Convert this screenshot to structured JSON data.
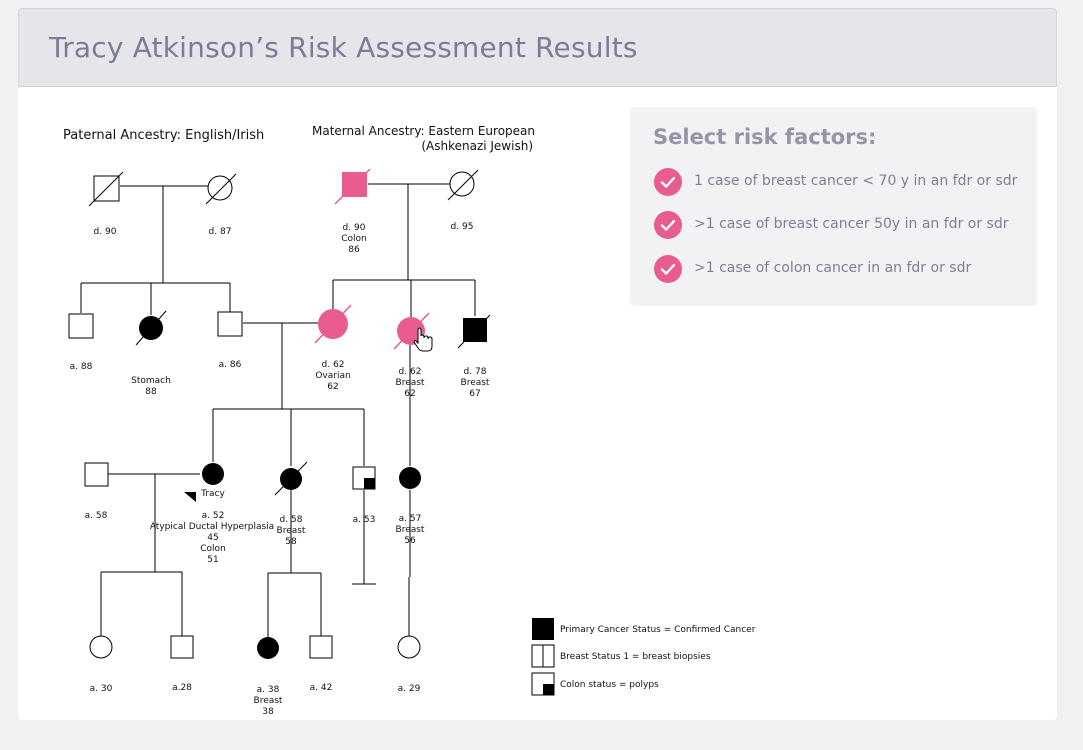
{
  "header": {
    "title": "Tracy Atkinson’s Risk Assessment Results"
  },
  "ancestry": {
    "paternal": "Paternal Ancestry: English/Irish",
    "maternal_line1": "Maternal Ancestry: Eastern European",
    "maternal_line2": "(Ashkenazi Jewish)"
  },
  "colors": {
    "affected": "#e85c8f",
    "confirmed": "#000000",
    "accent": "#e85c8f"
  },
  "pedigree": {
    "pgf": {
      "lines": [
        "d. 90"
      ]
    },
    "pgm": {
      "lines": [
        "d. 87"
      ]
    },
    "mgf": {
      "lines": [
        "d. 90",
        "Colon",
        "86"
      ]
    },
    "mgm": {
      "lines": [
        "d. 95"
      ]
    },
    "uncle1": {
      "lines": [
        "a. 88"
      ]
    },
    "aunt1": {
      "lines": [
        "Stomach",
        "88"
      ]
    },
    "father": {
      "lines": [
        "a. 86"
      ]
    },
    "mother": {
      "lines": [
        "d. 62",
        "Ovarian",
        "62"
      ]
    },
    "aunt2": {
      "lines": [
        "d. 62",
        "Breast",
        "62"
      ]
    },
    "uncle2": {
      "lines": [
        "d. 78",
        "Breast",
        "67"
      ]
    },
    "husband": {
      "lines": [
        "a. 58"
      ]
    },
    "tracy": {
      "name": "Tracy",
      "lines": [
        "a. 52",
        "Atypical Ductal Hyperplasia",
        "45",
        "Colon",
        "51"
      ]
    },
    "sister": {
      "lines": [
        "d. 58",
        "Breast",
        "58"
      ]
    },
    "brother": {
      "lines": [
        "a. 53"
      ]
    },
    "cousin": {
      "lines": [
        "a. 57",
        "Breast",
        "56"
      ]
    },
    "daughter1": {
      "lines": [
        "a. 30"
      ]
    },
    "son1": {
      "lines": [
        "a.28"
      ]
    },
    "niece": {
      "lines": [
        "a. 38",
        "Breast",
        "38"
      ]
    },
    "nephew": {
      "lines": [
        "a. 42"
      ]
    },
    "cousin_child": {
      "lines": [
        "a. 29"
      ]
    }
  },
  "legend": [
    {
      "icon": "filled-square-icon",
      "label": "Primary Cancer Status = Confirmed Cancer"
    },
    {
      "icon": "split-square-icon",
      "label": "Breast Status 1 = breast biopsies"
    },
    {
      "icon": "quadrant-square-icon",
      "label": "Colon status = polyps"
    }
  ],
  "risk": {
    "title": "Select risk factors:",
    "items": [
      {
        "label": "1 case of breast cancer < 70 y in an fdr or sdr",
        "checked": true
      },
      {
        "label": ">1 case of breast cancer 50y in an fdr or sdr",
        "checked": true
      },
      {
        "label": ">1 case of colon cancer in an fdr or sdr",
        "checked": true
      }
    ]
  }
}
